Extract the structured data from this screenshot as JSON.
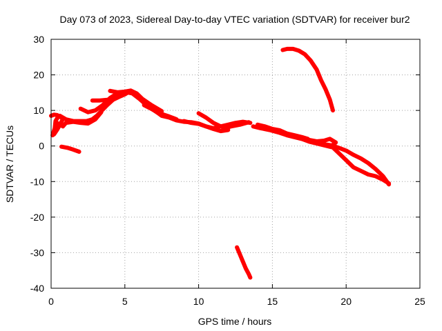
{
  "chart_data": {
    "type": "line",
    "title": "Day 073 of 2023, Sidereal Day-to-day VTEC variation (SDTVAR) for receiver bur2",
    "xlabel": "GPS time / hours",
    "ylabel": "SDTVAR / TECUs",
    "xlim": [
      0,
      25
    ],
    "ylim": [
      -40,
      30
    ],
    "xticks": [
      0,
      5,
      10,
      15,
      20,
      25
    ],
    "yticks": [
      -40,
      -30,
      -20,
      -10,
      0,
      10,
      20,
      30
    ],
    "grid": true,
    "color": "#ff0000",
    "series": [
      {
        "name": "arc-start-loop",
        "points": [
          [
            0.0,
            8.5
          ],
          [
            0.2,
            8.8
          ],
          [
            0.4,
            8.7
          ],
          [
            0.6,
            8.3
          ],
          [
            0.8,
            7.6
          ],
          [
            0.6,
            6.0
          ],
          [
            0.4,
            4.5
          ],
          [
            0.2,
            3.3
          ],
          [
            0.1,
            3.0
          ],
          [
            0.25,
            5.0
          ],
          [
            0.3,
            7.0
          ],
          [
            0.5,
            8.4
          ]
        ]
      },
      {
        "name": "arc-early-a",
        "points": [
          [
            0.6,
            8.5
          ],
          [
            1.0,
            7.5
          ],
          [
            1.5,
            7.0
          ],
          [
            2.0,
            7.0
          ],
          [
            2.4,
            7.0
          ],
          [
            2.8,
            7.5
          ],
          [
            3.1,
            8.5
          ],
          [
            3.4,
            9.8
          ],
          [
            3.8,
            11.5
          ],
          [
            4.2,
            13.0
          ],
          [
            4.6,
            13.8
          ],
          [
            5.0,
            14.5
          ],
          [
            5.3,
            15.3
          ]
        ]
      },
      {
        "name": "arc-early-b",
        "points": [
          [
            0.4,
            6.5
          ],
          [
            0.8,
            5.5
          ],
          [
            1.0,
            6.5
          ],
          [
            1.5,
            6.8
          ],
          [
            2.0,
            6.5
          ],
          [
            2.5,
            6.3
          ],
          [
            3.0,
            7.5
          ],
          [
            3.4,
            9.5
          ]
        ]
      },
      {
        "name": "arc-small-low",
        "points": [
          [
            0.7,
            -0.2
          ],
          [
            1.1,
            -0.5
          ],
          [
            1.5,
            -1.0
          ],
          [
            1.9,
            -1.6
          ]
        ]
      },
      {
        "name": "arc-mid-high",
        "points": [
          [
            2.0,
            10.5
          ],
          [
            2.5,
            9.5
          ],
          [
            3.0,
            10.0
          ],
          [
            3.5,
            11.5
          ],
          [
            4.0,
            13.5
          ],
          [
            4.5,
            14.8
          ],
          [
            5.0,
            15.2
          ],
          [
            5.5,
            14.8
          ],
          [
            6.0,
            13.2
          ],
          [
            6.6,
            11.0
          ],
          [
            7.2,
            9.4
          ],
          [
            8.0,
            8.3
          ],
          [
            8.5,
            7.5
          ]
        ]
      },
      {
        "name": "arc-high-flat",
        "points": [
          [
            2.8,
            12.8
          ],
          [
            3.3,
            12.8
          ],
          [
            3.8,
            13.0
          ],
          [
            4.2,
            13.3
          ]
        ]
      },
      {
        "name": "arc-upper",
        "points": [
          [
            4.0,
            15.5
          ],
          [
            4.5,
            15.1
          ],
          [
            5.0,
            15.3
          ],
          [
            5.4,
            15.6
          ],
          [
            5.8,
            14.8
          ],
          [
            6.2,
            13.2
          ],
          [
            6.8,
            11.5
          ],
          [
            7.5,
            9.8
          ]
        ]
      },
      {
        "name": "arc-mid-1",
        "points": [
          [
            6.3,
            11.5
          ],
          [
            7.0,
            10.0
          ],
          [
            7.5,
            8.5
          ],
          [
            8.0,
            8.0
          ],
          [
            8.5,
            7.2
          ],
          [
            9.0,
            6.8
          ],
          [
            9.5,
            6.7
          ],
          [
            10.0,
            6.3
          ],
          [
            10.5,
            5.5
          ],
          [
            11.0,
            4.8
          ],
          [
            11.5,
            4.2
          ],
          [
            12.0,
            4.5
          ]
        ]
      },
      {
        "name": "arc-mid-2",
        "points": [
          [
            10.0,
            9.2
          ],
          [
            10.5,
            8.0
          ],
          [
            11.0,
            6.5
          ],
          [
            11.5,
            5.5
          ],
          [
            11.8,
            5.0
          ],
          [
            12.2,
            5.5
          ],
          [
            12.8,
            6.0
          ],
          [
            13.4,
            6.7
          ]
        ]
      },
      {
        "name": "arc-mid-3",
        "points": [
          [
            9.0,
            7.0
          ],
          [
            9.5,
            6.5
          ],
          [
            10.0,
            6.2
          ],
          [
            10.5,
            5.5
          ],
          [
            11.0,
            5.0
          ],
          [
            11.5,
            5.5
          ],
          [
            12.0,
            6.0
          ],
          [
            12.5,
            6.5
          ],
          [
            13.0,
            6.8
          ],
          [
            13.5,
            6.5
          ]
        ]
      },
      {
        "name": "arc-late-descent",
        "points": [
          [
            13.7,
            5.5
          ],
          [
            14.2,
            5.0
          ],
          [
            14.8,
            4.5
          ],
          [
            15.5,
            3.7
          ],
          [
            16.0,
            3.0
          ],
          [
            16.5,
            2.5
          ],
          [
            17.0,
            2.0
          ],
          [
            17.5,
            1.5
          ],
          [
            18.0,
            1.0
          ],
          [
            18.5,
            0.5
          ],
          [
            19.0,
            0.2
          ],
          [
            19.5,
            -0.5
          ],
          [
            20.0,
            -1.3
          ],
          [
            20.5,
            -2.5
          ],
          [
            21.0,
            -3.5
          ],
          [
            21.5,
            -4.8
          ],
          [
            22.0,
            -6.5
          ],
          [
            22.5,
            -8.5
          ],
          [
            22.9,
            -10.8
          ]
        ]
      },
      {
        "name": "arc-late-flat",
        "points": [
          [
            14.0,
            6.0
          ],
          [
            14.5,
            5.5
          ],
          [
            15.0,
            4.8
          ],
          [
            15.5,
            4.4
          ],
          [
            16.0,
            3.5
          ],
          [
            16.5,
            3.0
          ],
          [
            17.0,
            2.5
          ],
          [
            17.4,
            2.0
          ]
        ]
      },
      {
        "name": "arc-late-lower",
        "points": [
          [
            17.5,
            1.7
          ],
          [
            18.0,
            1.3
          ],
          [
            18.5,
            1.5
          ],
          [
            18.9,
            2.0
          ],
          [
            19.3,
            1.0
          ],
          [
            19.0,
            0.0
          ],
          [
            19.5,
            -2.0
          ],
          [
            20.0,
            -4.0
          ],
          [
            20.5,
            -6.0
          ],
          [
            21.0,
            -7.0
          ],
          [
            21.5,
            -8.0
          ],
          [
            22.0,
            -8.5
          ],
          [
            22.5,
            -9.5
          ],
          [
            22.9,
            -10.5
          ]
        ]
      },
      {
        "name": "arc-late-mid",
        "points": [
          [
            15.0,
            4.5
          ],
          [
            15.5,
            3.8
          ],
          [
            16.0,
            3.0
          ],
          [
            16.5,
            2.5
          ],
          [
            17.0,
            2.0
          ],
          [
            17.5,
            1.2
          ],
          [
            18.0,
            0.7
          ],
          [
            18.5,
            0.2
          ],
          [
            19.0,
            -0.3
          ]
        ]
      },
      {
        "name": "arc-upper-right",
        "points": [
          [
            15.7,
            27.0
          ],
          [
            16.0,
            27.3
          ],
          [
            16.4,
            27.3
          ],
          [
            16.8,
            26.8
          ],
          [
            17.2,
            25.8
          ],
          [
            17.6,
            24.0
          ],
          [
            18.0,
            21.5
          ],
          [
            18.3,
            18.5
          ],
          [
            18.6,
            16.0
          ],
          [
            18.9,
            13.0
          ],
          [
            19.1,
            10.0
          ]
        ]
      },
      {
        "name": "arc-bottom",
        "points": [
          [
            12.6,
            -28.5
          ],
          [
            12.8,
            -30.5
          ],
          [
            13.0,
            -32.5
          ],
          [
            13.2,
            -34.5
          ],
          [
            13.4,
            -36.0
          ],
          [
            13.5,
            -37.0
          ]
        ]
      }
    ]
  }
}
